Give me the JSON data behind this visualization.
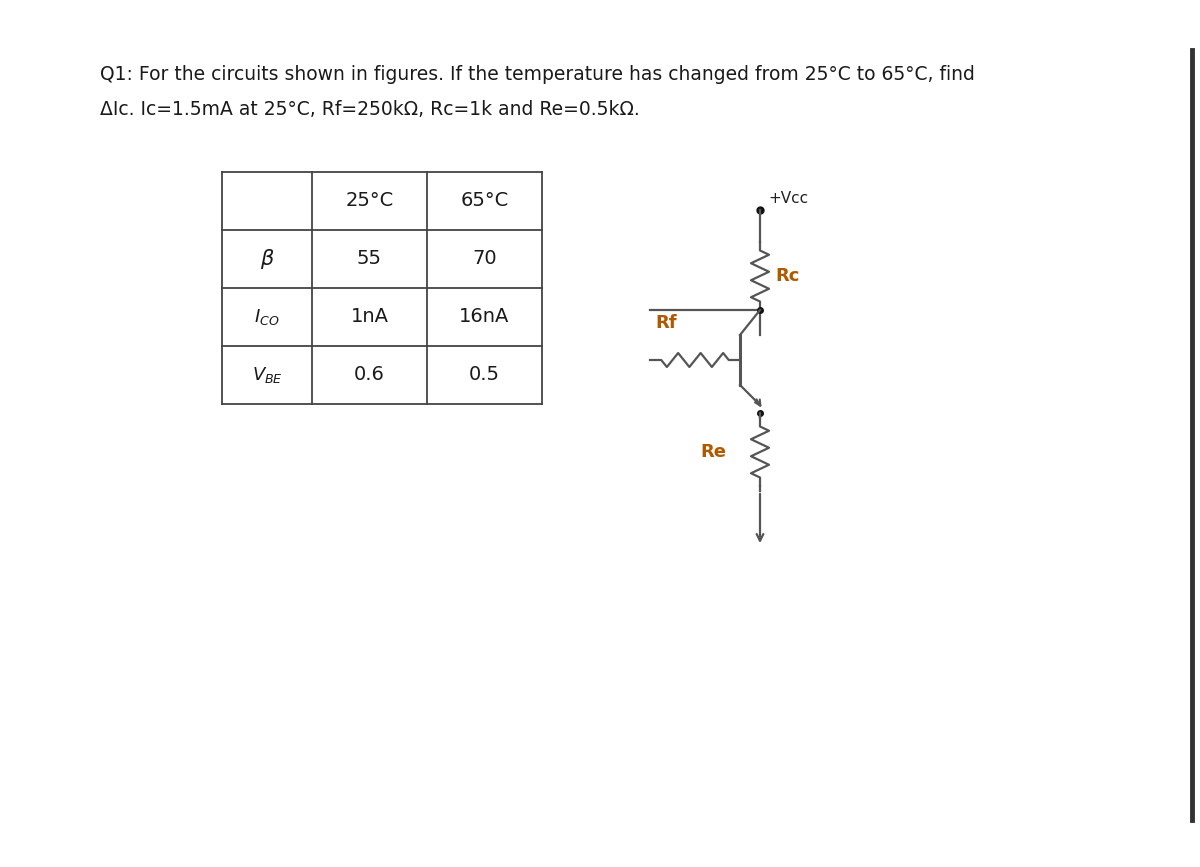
{
  "title_line1": "Q1: For the circuits shown in figures. If the temperature has changed from 25°C to 65°C, find",
  "title_line2": "ΔIc. Ic=1.5mA at 25°C, Rf​=250kΩ, Rc=1k and Re=0.5kΩ.",
  "table_headers": [
    "",
    "25°C",
    "65°C"
  ],
  "table_rows": [
    [
      "β",
      "55",
      "70"
    ],
    [
      "ICO",
      "1nA",
      "16nA"
    ],
    [
      "VBE",
      "0.6",
      "0.5"
    ]
  ],
  "component_labels": {
    "Vcc": "+Vcc",
    "Rf": "Rf",
    "Rc": "Rc",
    "Re": "Re"
  },
  "label_color_orange": "#b05a00",
  "label_color_black": "#222222",
  "bg_color": "#ffffff",
  "text_color": "#1a1a1a",
  "circuit_color": "#555555",
  "table_line_color": "#444444",
  "right_bar_color": "#333333"
}
